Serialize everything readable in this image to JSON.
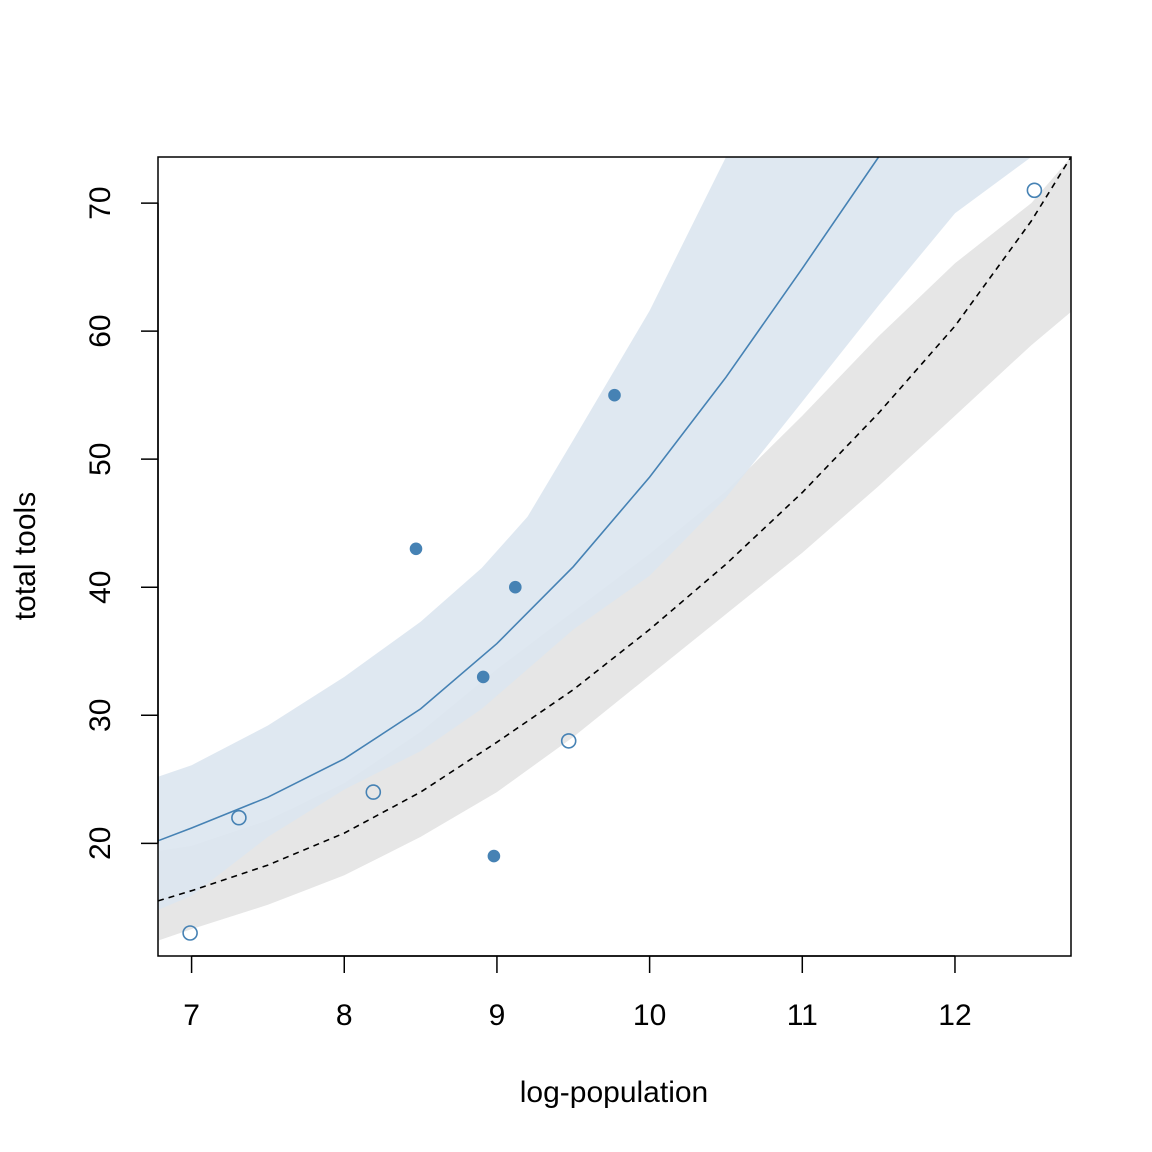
{
  "chart_data": {
    "type": "scatter",
    "xlabel": "log-population",
    "ylabel": "total tools",
    "xlim": [
      6.78,
      12.76
    ],
    "ylim": [
      11.2,
      73.6
    ],
    "xticks": [
      7,
      8,
      9,
      10,
      11,
      12
    ],
    "yticks": [
      20,
      30,
      40,
      50,
      60,
      70
    ],
    "grid": false,
    "colors": {
      "high_contact": "#4682B4",
      "low_contact": "#000000",
      "high_band": "#DCE6F0",
      "low_band": "#E6E6E6",
      "overlap_band": "#C4CFD8"
    },
    "series": [
      {
        "marker": "open-circle",
        "color": "#4682B4",
        "points": [
          {
            "x": 6.99,
            "y": 13
          },
          {
            "x": 7.31,
            "y": 22
          },
          {
            "x": 8.19,
            "y": 24
          },
          {
            "x": 9.47,
            "y": 28
          },
          {
            "x": 12.52,
            "y": 71
          }
        ]
      },
      {
        "marker": "filled-circle",
        "color": "#4682B4",
        "points": [
          {
            "x": 8.47,
            "y": 43
          },
          {
            "x": 8.91,
            "y": 33
          },
          {
            "x": 8.98,
            "y": 19
          },
          {
            "x": 9.12,
            "y": 40
          },
          {
            "x": 9.77,
            "y": 55
          }
        ]
      }
    ],
    "trend_lines": [
      {
        "style": "solid",
        "color": "#4682B4",
        "x": [
          6.78,
          7,
          7.5,
          8,
          8.5,
          9,
          9.5,
          10,
          10.5,
          11,
          11.5
        ],
        "y": [
          20.2,
          21.2,
          23.6,
          26.6,
          30.5,
          35.6,
          41.6,
          48.6,
          56.4,
          64.9,
          73.6
        ]
      },
      {
        "style": "dashed",
        "color": "#000000",
        "x": [
          6.78,
          7,
          7.5,
          8,
          8.5,
          9,
          9.5,
          10,
          10.5,
          11,
          11.5,
          12,
          12.5,
          12.76
        ],
        "y": [
          15.5,
          16.3,
          18.3,
          20.8,
          24.0,
          27.9,
          32.0,
          36.7,
          41.8,
          47.4,
          53.6,
          60.4,
          68.6,
          73.6
        ]
      }
    ],
    "bands": [
      {
        "color": "#E6E6E6",
        "x": [
          6.78,
          7,
          7.5,
          8,
          8.5,
          9,
          9.5,
          10,
          10.5,
          11,
          11.5,
          12,
          12.5,
          12.76
        ],
        "lower": [
          12.4,
          13.3,
          15.2,
          17.5,
          20.5,
          24.0,
          28.3,
          33.1,
          37.9,
          42.7,
          47.9,
          53.4,
          58.9,
          61.5
        ],
        "upper": [
          19.4,
          19.8,
          21.8,
          24.7,
          28.7,
          33.6,
          38.1,
          42.6,
          47.5,
          53.4,
          59.6,
          65.3,
          70.0,
          73.6
        ]
      },
      {
        "color": "#DCE6F0",
        "x": [
          6.78,
          7,
          7.5,
          8,
          8.5,
          8.9,
          9.2,
          9.5,
          10,
          10.5,
          11,
          11.5,
          12,
          12.5,
          12.76
        ],
        "lower": [
          14.8,
          15.9,
          20.5,
          24.2,
          27.2,
          30.5,
          33.6,
          36.7,
          40.9,
          47.0,
          54.5,
          62.0,
          69.2,
          73.6,
          73.6
        ],
        "upper": [
          25.2,
          26.1,
          29.2,
          33.0,
          37.3,
          41.5,
          45.5,
          51.5,
          61.6,
          73.6,
          73.6,
          73.6,
          73.6,
          73.6,
          73.6
        ]
      }
    ]
  }
}
